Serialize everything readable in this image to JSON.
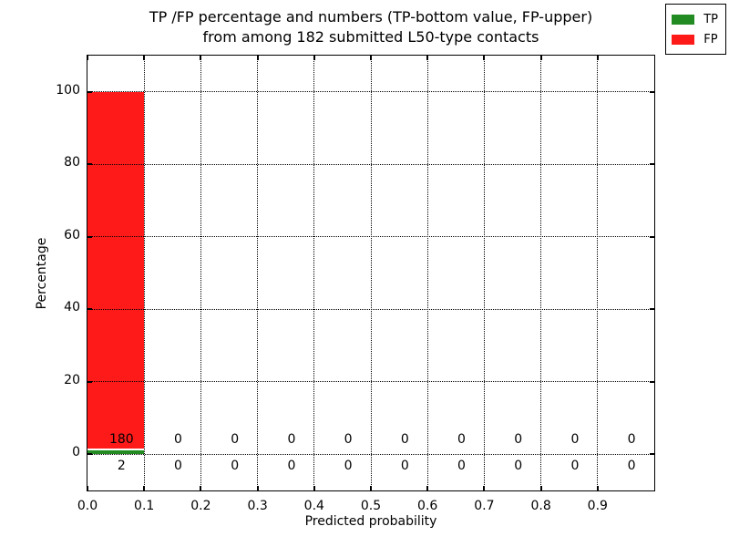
{
  "figure": {
    "title_line1": "TP /FP percentage and numbers (TP-bottom value, FP-upper)",
    "title_line2": "from among 182 submitted L50-type contacts",
    "xlabel": "Predicted probability",
    "ylabel": "Percentage",
    "background": "#ffffff",
    "text_color": "#000000"
  },
  "chart_data": {
    "type": "bar",
    "stacked": true,
    "title": "TP /FP percentage and numbers (TP-bottom value, FP-upper) from among 182 submitted L50-type contacts",
    "xlabel": "Predicted probability",
    "ylabel": "Percentage",
    "total_submitted_contacts": 182,
    "bin_width": 0.1,
    "bin_starts": [
      0.0,
      0.1,
      0.2,
      0.3,
      0.4,
      0.5,
      0.6,
      0.7,
      0.8,
      0.9
    ],
    "series": [
      {
        "name": "TP",
        "color": "#228b22",
        "counts": [
          2,
          0,
          0,
          0,
          0,
          0,
          0,
          0,
          0,
          0
        ],
        "percent": [
          1.099,
          0,
          0,
          0,
          0,
          0,
          0,
          0,
          0,
          0
        ]
      },
      {
        "name": "FP",
        "color": "#ff1a1a",
        "counts": [
          180,
          0,
          0,
          0,
          0,
          0,
          0,
          0,
          0,
          0
        ],
        "percent": [
          98.901,
          0,
          0,
          0,
          0,
          0,
          0,
          0,
          0,
          0
        ]
      }
    ],
    "count_labels": {
      "upper_row_series": "FP",
      "lower_row_series": "TP",
      "upper_row_y": 4.0,
      "lower_row_y": -3.2,
      "x_offset": 0.01
    },
    "xticks": [
      "0.0",
      "0.1",
      "0.2",
      "0.3",
      "0.4",
      "0.5",
      "0.6",
      "0.7",
      "0.8",
      "0.9"
    ],
    "yticks": [
      "0",
      "20",
      "40",
      "60",
      "80",
      "100"
    ],
    "xlim": [
      0.0,
      1.0
    ],
    "ylim": [
      -10,
      110
    ],
    "grid": true,
    "grid_style": "dotted",
    "bar_separator_color": "#ffffff",
    "legend": {
      "position": "upper right",
      "entries": [
        "TP",
        "FP"
      ]
    }
  }
}
